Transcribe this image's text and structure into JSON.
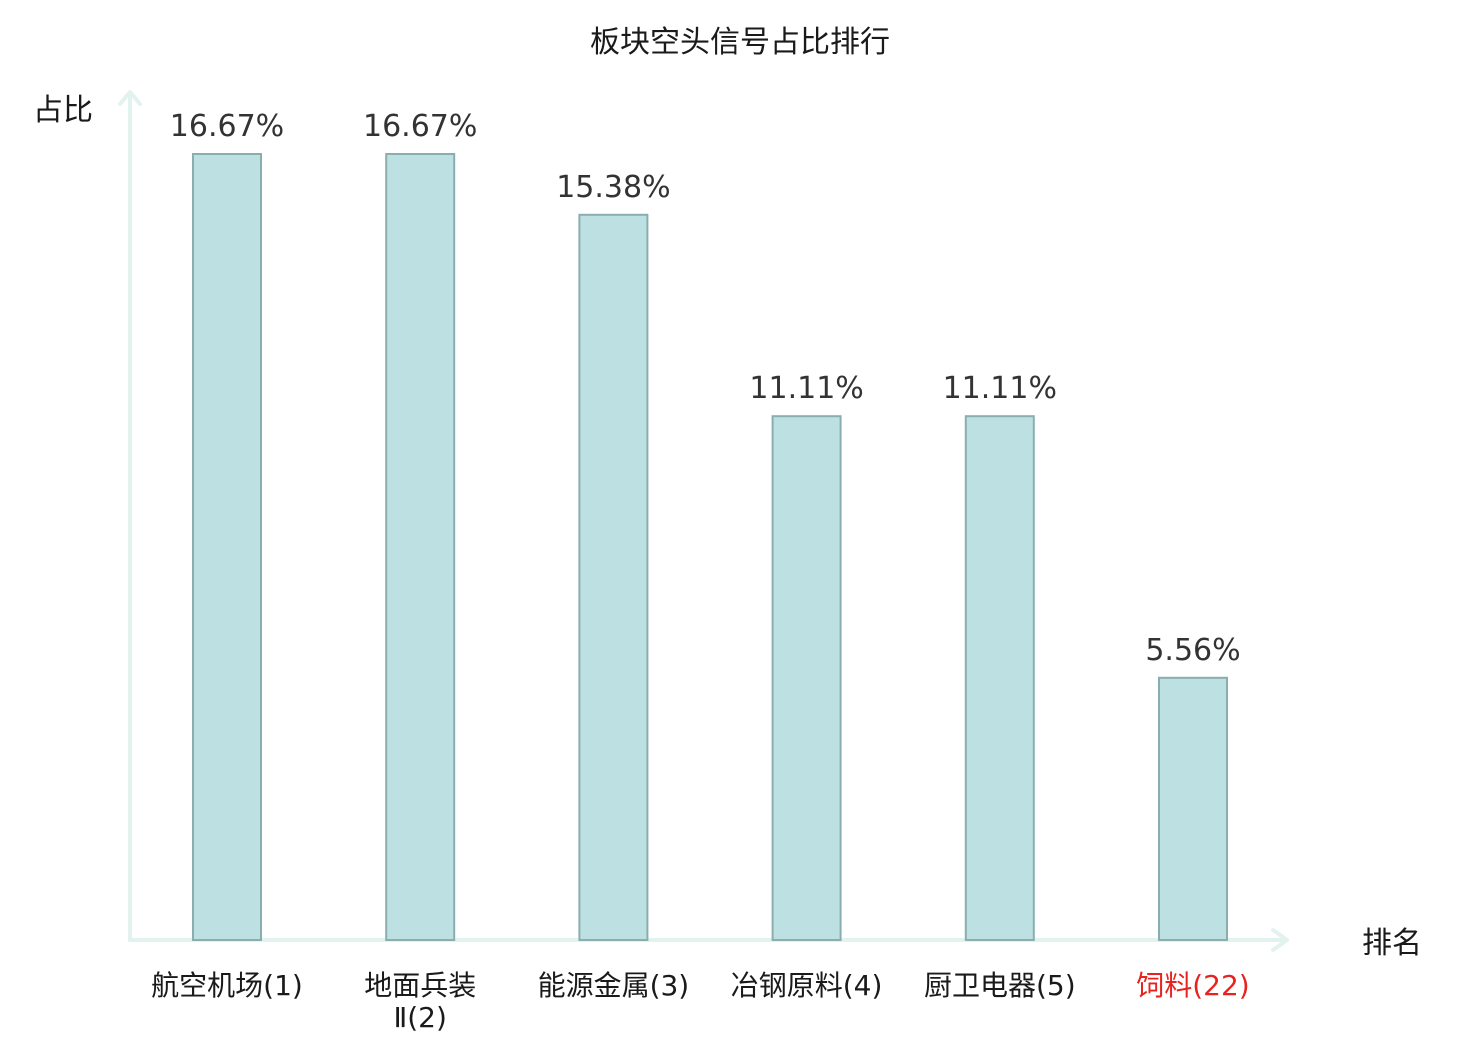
{
  "chart_data": {
    "type": "bar",
    "title": "板块空头信号占比排行",
    "ylabel": "占比",
    "xlabel": "排名",
    "ylim": [
      0,
      18
    ],
    "grid": false,
    "categories": [
      {
        "lines": [
          "航空机场(1)"
        ],
        "highlight": false
      },
      {
        "lines": [
          "地面兵装",
          "Ⅱ(2)"
        ],
        "highlight": false
      },
      {
        "lines": [
          "能源金属(3)"
        ],
        "highlight": false
      },
      {
        "lines": [
          "冶钢原料(4)"
        ],
        "highlight": false
      },
      {
        "lines": [
          "厨卫电器(5)"
        ],
        "highlight": false
      },
      {
        "lines": [
          "饲料(22)"
        ],
        "highlight": true
      }
    ],
    "values": [
      16.67,
      16.67,
      15.38,
      11.11,
      11.11,
      5.56
    ],
    "value_labels": [
      "16.67%",
      "16.67%",
      "15.38%",
      "11.11%",
      "11.11%",
      "5.56%"
    ]
  },
  "colors": {
    "bar_fill": "#bde1e3",
    "bar_stroke": "#8aaeae",
    "axis": "#e2f3ef",
    "label_text": "#333333",
    "highlight_text": "#e8231f"
  }
}
